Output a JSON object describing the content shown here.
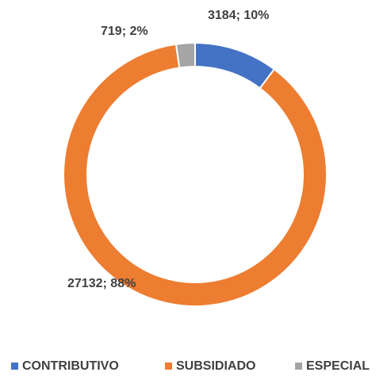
{
  "chart_data": {
    "type": "donut",
    "categories": [
      "CONTRIBUTIVO",
      "SUBSIDIADO",
      "ESPECIAL"
    ],
    "values": [
      3184,
      27132,
      719
    ],
    "value_labels": [
      "3184; 10%",
      "27132; 88%",
      "719; 2%"
    ],
    "colors": [
      "#4472c4",
      "#ed7d31",
      "#a5a5a5"
    ],
    "legend": "bottom"
  }
}
